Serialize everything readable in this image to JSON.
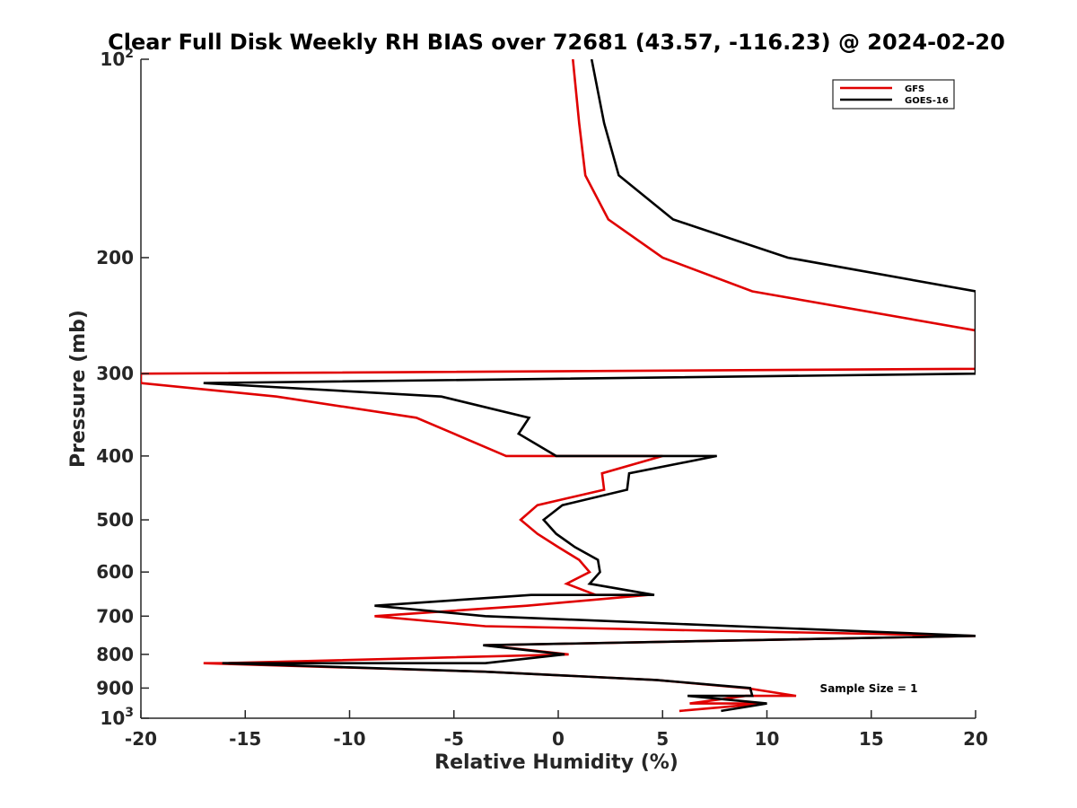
{
  "chart_data": {
    "type": "line",
    "title": "Clear Full Disk Weekly RH BIAS over 72681 (43.57, -116.23) @ 2024-02-20",
    "xlabel": "Relative Humidity (%)",
    "ylabel": "Pressure (mb)",
    "xlim": [
      -20,
      20
    ],
    "ylim": [
      100,
      1000
    ],
    "y_scale": "log",
    "y_reversed": true,
    "x_ticks": [
      -20,
      -15,
      -10,
      -5,
      0,
      5,
      10,
      15,
      20
    ],
    "x_tick_labels": [
      "-20",
      "-15",
      "-10",
      "-5",
      "0",
      "5",
      "10",
      "15",
      "20"
    ],
    "y_ticks": [
      100,
      200,
      300,
      400,
      500,
      600,
      700,
      800,
      900,
      1000
    ],
    "y_tick_labels": [
      {
        "base": "10",
        "sup": "2"
      },
      {
        "base": "200",
        "sup": ""
      },
      {
        "base": "300",
        "sup": ""
      },
      {
        "base": "400",
        "sup": ""
      },
      {
        "base": "500",
        "sup": ""
      },
      {
        "base": "600",
        "sup": ""
      },
      {
        "base": "700",
        "sup": ""
      },
      {
        "base": "800",
        "sup": ""
      },
      {
        "base": "900",
        "sup": ""
      },
      {
        "base": "10",
        "sup": "3"
      }
    ],
    "legend_position": "top-right",
    "annotation": "Sample Size = 1",
    "series": [
      {
        "name": "GFS",
        "color": "#e00000",
        "points": [
          [
            0.7,
            100
          ],
          [
            1.0,
            125
          ],
          [
            1.3,
            150
          ],
          [
            2.4,
            175
          ],
          [
            5.0,
            200
          ],
          [
            9.3,
            225
          ],
          [
            20.0,
            258
          ],
          [
            20.0,
            295
          ],
          [
            -20.0,
            300
          ],
          [
            -20.0,
            310
          ],
          [
            -13.5,
            325
          ],
          [
            -6.8,
            350
          ],
          [
            -5.0,
            370
          ],
          [
            -2.5,
            400
          ],
          [
            5.0,
            400
          ],
          [
            2.1,
            425
          ],
          [
            2.2,
            450
          ],
          [
            -1.0,
            475
          ],
          [
            -1.8,
            500
          ],
          [
            -1.0,
            525
          ],
          [
            0.0,
            550
          ],
          [
            1.0,
            575
          ],
          [
            1.5,
            600
          ],
          [
            0.4,
            625
          ],
          [
            1.8,
            650
          ],
          [
            4.3,
            650
          ],
          [
            -1.5,
            675
          ],
          [
            -8.8,
            700
          ],
          [
            -3.5,
            725
          ],
          [
            20.0,
            750
          ],
          [
            -3.5,
            775
          ],
          [
            0.5,
            800
          ],
          [
            -16.0,
            825
          ],
          [
            -17.0,
            825
          ],
          [
            -3.5,
            850
          ],
          [
            4.7,
            875
          ],
          [
            9.0,
            900
          ],
          [
            11.4,
            925
          ],
          [
            9.0,
            925
          ],
          [
            6.3,
            950
          ],
          [
            9.9,
            950
          ],
          [
            5.8,
            975
          ]
        ]
      },
      {
        "name": "GOES-16",
        "color": "#000000",
        "points": [
          [
            1.6,
            100
          ],
          [
            2.2,
            125
          ],
          [
            2.9,
            150
          ],
          [
            5.5,
            175
          ],
          [
            11.0,
            200
          ],
          [
            20.0,
            225
          ],
          [
            20.0,
            300
          ],
          [
            -17.0,
            310
          ],
          [
            -5.6,
            325
          ],
          [
            -1.4,
            350
          ],
          [
            -1.9,
            370
          ],
          [
            -0.1,
            400
          ],
          [
            7.6,
            400
          ],
          [
            3.4,
            425
          ],
          [
            3.3,
            450
          ],
          [
            0.2,
            475
          ],
          [
            -0.7,
            500
          ],
          [
            -0.1,
            525
          ],
          [
            0.8,
            550
          ],
          [
            1.9,
            575
          ],
          [
            2.0,
            600
          ],
          [
            1.5,
            625
          ],
          [
            4.6,
            650
          ],
          [
            -1.3,
            650
          ],
          [
            -8.8,
            675
          ],
          [
            -3.5,
            700
          ],
          [
            20.0,
            750
          ],
          [
            -3.6,
            775
          ],
          [
            0.3,
            800
          ],
          [
            -3.5,
            825
          ],
          [
            -16.1,
            825
          ],
          [
            -3.5,
            850
          ],
          [
            4.7,
            875
          ],
          [
            9.2,
            900
          ],
          [
            9.3,
            925
          ],
          [
            6.2,
            925
          ],
          [
            10.0,
            950
          ],
          [
            7.8,
            975
          ]
        ]
      }
    ]
  }
}
